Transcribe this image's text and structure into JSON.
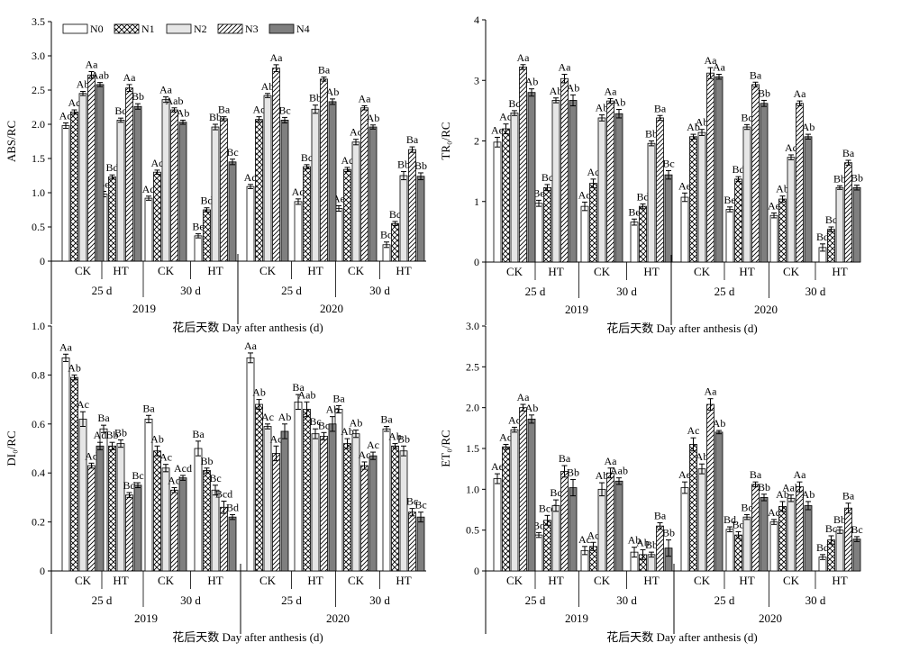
{
  "figure": {
    "xlabel": "花后天数 Day after anthesis (d)",
    "legend": [
      "N0",
      "N1",
      "N2",
      "N3",
      "N4"
    ],
    "groups": [
      "CK",
      "HT",
      "CK",
      "HT",
      "CK",
      "HT",
      "CK",
      "HT"
    ],
    "stages": [
      "25 d",
      "30 d",
      "25 d",
      "30 d"
    ],
    "years": [
      "2019",
      "2020"
    ]
  },
  "chart_data": [
    {
      "type": "bar",
      "ylabel": "ABS/RC",
      "ylim": [
        0,
        3.5
      ],
      "yticks": [
        "0",
        "0.5",
        "1.0",
        "1.5",
        "2.0",
        "2.5",
        "3.0",
        "3.5"
      ],
      "categories": [
        "2019 25 d CK",
        "2019 25 d HT",
        "2019 30 d CK",
        "2019 30 d HT",
        "2020 25 d CK",
        "2020 25 d HT",
        "2020 30 d CK",
        "2020 30 d HT"
      ],
      "series": [
        {
          "name": "N0",
          "values": [
            1.98,
            0.98,
            0.92,
            0.37,
            1.09,
            0.87,
            0.77,
            0.24
          ],
          "err": [
            0.04,
            0.04,
            0.03,
            0.03,
            0.03,
            0.04,
            0.04,
            0.04
          ],
          "labels": [
            "Ad",
            "Be",
            "Ad",
            "Be",
            "Ad",
            "Ad",
            "Ae",
            "Bd"
          ]
        },
        {
          "name": "N1",
          "values": [
            2.18,
            1.23,
            1.3,
            0.75,
            2.07,
            1.38,
            1.34,
            0.55
          ],
          "err": [
            0.03,
            0.03,
            0.03,
            0.03,
            0.04,
            0.03,
            0.03,
            0.03
          ],
          "labels": [
            "Ac",
            "Bd",
            "Ac",
            "Bd",
            "Ac",
            "Bc",
            "Ac",
            "Bc"
          ]
        },
        {
          "name": "N2",
          "values": [
            2.45,
            2.06,
            2.36,
            1.96,
            2.42,
            2.22,
            1.74,
            1.25
          ],
          "err": [
            0.03,
            0.03,
            0.04,
            0.04,
            0.03,
            0.06,
            0.04,
            0.06
          ],
          "labels": [
            "Ab",
            "Bc",
            "Aa",
            "Bb",
            "Ab",
            "Bb",
            "Ac",
            "Bb"
          ]
        },
        {
          "name": "N3",
          "values": [
            2.72,
            2.53,
            2.21,
            2.08,
            2.82,
            2.66,
            2.24,
            1.63
          ],
          "err": [
            0.05,
            0.05,
            0.03,
            0.03,
            0.05,
            0.03,
            0.03,
            0.04
          ],
          "labels": [
            "Aa",
            "Aa",
            "Aab",
            "Ba",
            "Aa",
            "Ba",
            "Aa",
            "Ba"
          ]
        },
        {
          "name": "N4",
          "values": [
            2.58,
            2.26,
            2.03,
            1.45,
            2.06,
            2.33,
            1.96,
            1.24
          ],
          "err": [
            0.03,
            0.04,
            0.03,
            0.04,
            0.04,
            0.04,
            0.03,
            0.05
          ],
          "labels": [
            "Aab",
            "Bb",
            "Ab",
            "Bc",
            "Bc",
            "Ab",
            "Ab",
            "Bb"
          ]
        }
      ]
    },
    {
      "type": "bar",
      "ylabel": "TR₀/RC",
      "ylim": [
        0,
        4
      ],
      "yticks": [
        "0",
        "1",
        "2",
        "3",
        "4"
      ],
      "categories": [
        "2019 25 d CK",
        "2019 25 d HT",
        "2019 30 d CK",
        "2019 30 d HT",
        "2020 25 d CK",
        "2020 25 d HT",
        "2020 30 d CK",
        "2020 30 d HT"
      ],
      "series": [
        {
          "name": "N0",
          "values": [
            1.98,
            0.97,
            0.92,
            0.66,
            1.07,
            0.87,
            0.77,
            0.24
          ],
          "err": [
            0.08,
            0.05,
            0.07,
            0.05,
            0.07,
            0.04,
            0.04,
            0.06
          ],
          "labels": [
            "Ae",
            "Be",
            "Ad",
            "Be",
            "Ae",
            "Be",
            "Ae",
            "Bd"
          ]
        },
        {
          "name": "N1",
          "values": [
            2.2,
            1.23,
            1.3,
            0.92,
            2.07,
            1.37,
            1.04,
            0.54
          ],
          "err": [
            0.08,
            0.05,
            0.07,
            0.04,
            0.04,
            0.04,
            0.05,
            0.04
          ],
          "labels": [
            "Ad",
            "Bc",
            "Ac",
            "Bd",
            "Ab",
            "Bd",
            "Ab",
            "Bc"
          ]
        },
        {
          "name": "N2",
          "values": [
            2.46,
            2.67,
            2.38,
            1.96,
            2.14,
            2.23,
            1.73,
            1.23
          ],
          "err": [
            0.04,
            0.04,
            0.05,
            0.04,
            0.05,
            0.04,
            0.04,
            0.03
          ],
          "labels": [
            "Bc",
            "Ab",
            "Ab",
            "Bb",
            "Ab",
            "Bc",
            "Ac",
            "Bb"
          ]
        },
        {
          "name": "N3",
          "values": [
            3.22,
            3.03,
            2.66,
            2.38,
            3.12,
            2.93,
            2.62,
            1.64
          ],
          "err": [
            0.04,
            0.07,
            0.04,
            0.04,
            0.09,
            0.04,
            0.04,
            0.04
          ],
          "labels": [
            "Aa",
            "Aa",
            "Aa",
            "Ba",
            "Aa",
            "Ba",
            "Aa",
            "Ba"
          ]
        },
        {
          "name": "N4",
          "values": [
            2.8,
            2.67,
            2.45,
            1.44,
            3.06,
            2.62,
            2.07,
            1.23
          ],
          "err": [
            0.06,
            0.09,
            0.07,
            0.07,
            0.04,
            0.05,
            0.04,
            0.04
          ],
          "labels": [
            "Ab",
            "Ab",
            "Ab",
            "Bc",
            "Aa",
            "Bb",
            "Ab",
            "Bb"
          ]
        }
      ]
    },
    {
      "type": "bar",
      "ylabel": "DI₀/RC",
      "ylim": [
        0,
        1.0
      ],
      "yticks": [
        "0",
        "0.2",
        "0.4",
        "0.6",
        "0.8",
        "1.0"
      ],
      "categories": [
        "2019 25 d CK",
        "2019 25 d HT",
        "2019 30 d CK",
        "2019 30 d HT",
        "2020 25 d CK",
        "2020 25 d HT",
        "2020 30 d CK",
        "2020 30 d HT"
      ],
      "series": [
        {
          "name": "N0",
          "values": [
            0.87,
            0.58,
            0.62,
            0.5,
            0.87,
            0.69,
            0.66,
            0.58
          ],
          "err": [
            0.015,
            0.015,
            0.015,
            0.03,
            0.02,
            0.03,
            0.015,
            0.01
          ],
          "labels": [
            "Aa",
            "Ba",
            "Ba",
            "Ba",
            "Aa",
            "Ba",
            "Ba",
            "Ba"
          ]
        },
        {
          "name": "N1",
          "values": [
            0.79,
            0.51,
            0.49,
            0.41,
            0.68,
            0.66,
            0.52,
            0.51
          ],
          "err": [
            0.01,
            0.015,
            0.02,
            0.01,
            0.02,
            0.03,
            0.02,
            0.01
          ],
          "labels": [
            "Ab",
            "Bb",
            "Ab",
            "Bb",
            "Ab",
            "Aab",
            "Ab",
            "Ab"
          ]
        },
        {
          "name": "N2",
          "values": [
            0.62,
            0.52,
            0.42,
            0.33,
            0.59,
            0.56,
            0.56,
            0.49
          ],
          "err": [
            0.03,
            0.015,
            0.015,
            0.02,
            0.01,
            0.02,
            0.015,
            0.02
          ],
          "labels": [
            "Ac",
            "Bb",
            "Ac",
            "Bc",
            "Ac",
            "Bc",
            "Ab",
            "Bb"
          ]
        },
        {
          "name": "N3",
          "values": [
            0.43,
            0.31,
            0.33,
            0.26,
            0.48,
            0.55,
            0.43,
            0.24
          ],
          "err": [
            0.01,
            0.01,
            0.01,
            0.025,
            0.03,
            0.015,
            0.015,
            0.015
          ],
          "labels": [
            "Ad",
            "Bd",
            "Ad",
            "Bcd",
            "Ac",
            "Bc",
            "Ac",
            "Bc"
          ]
        },
        {
          "name": "N4",
          "values": [
            0.51,
            0.35,
            0.38,
            0.22,
            0.57,
            0.6,
            0.47,
            0.22
          ],
          "err": [
            0.015,
            0.01,
            0.01,
            0.01,
            0.03,
            0.03,
            0.015,
            0.02
          ],
          "labels": [
            "Ad",
            "Bc",
            "Acd",
            "Bd",
            "Ab",
            "Ab",
            "Ac",
            "Bc"
          ]
        }
      ]
    },
    {
      "type": "bar",
      "ylabel": "ET₀/RC",
      "ylim": [
        0,
        3.0
      ],
      "yticks": [
        "0",
        "0.5",
        "1.0",
        "1.5",
        "2.0",
        "2.5",
        "3.0"
      ],
      "categories": [
        "2019 25 d CK",
        "2019 25 d HT",
        "2019 30 d CK",
        "2019 30 d HT",
        "2020 25 d CK",
        "2020 25 d HT",
        "2020 30 d CK",
        "2020 30 d HT"
      ],
      "series": [
        {
          "name": "N0",
          "values": [
            1.13,
            0.44,
            0.25,
            0.23,
            1.02,
            0.51,
            0.6,
            0.17
          ],
          "err": [
            0.06,
            0.03,
            0.05,
            0.06,
            0.07,
            0.03,
            0.03,
            0.03
          ],
          "labels": [
            "Ae",
            "Bd",
            "Ac",
            "Ab",
            "Ae",
            "Bd",
            "Ac",
            "Bd"
          ]
        },
        {
          "name": "N1",
          "values": [
            1.52,
            0.62,
            0.3,
            0.2,
            1.55,
            0.44,
            0.79,
            0.38
          ],
          "err": [
            0.03,
            0.06,
            0.05,
            0.06,
            0.08,
            0.04,
            0.06,
            0.05
          ],
          "labels": [
            "Ad",
            "Bcd",
            "Ac",
            "Ab",
            "Ac",
            "Bd",
            "Ab",
            "Bc"
          ]
        },
        {
          "name": "N2",
          "values": [
            1.73,
            0.8,
            1.0,
            0.2,
            1.25,
            0.66,
            0.89,
            0.5
          ],
          "err": [
            0.03,
            0.07,
            0.08,
            0.03,
            0.06,
            0.03,
            0.04,
            0.04
          ],
          "labels": [
            "Ac",
            "Bc",
            "Ab",
            "Bb",
            "Ab",
            "Bc",
            "Aab",
            "Bb"
          ]
        },
        {
          "name": "N3",
          "values": [
            2.0,
            1.22,
            1.2,
            0.55,
            2.04,
            1.06,
            1.03,
            0.77
          ],
          "err": [
            0.04,
            0.07,
            0.06,
            0.04,
            0.07,
            0.03,
            0.06,
            0.06
          ],
          "labels": [
            "Aa",
            "Ba",
            "Aa",
            "Ba",
            "Aa",
            "Ba",
            "Aa",
            "Ba"
          ]
        },
        {
          "name": "N4",
          "values": [
            1.86,
            1.02,
            1.1,
            0.28,
            1.7,
            0.9,
            0.8,
            0.39
          ],
          "err": [
            0.05,
            0.1,
            0.04,
            0.1,
            0.02,
            0.04,
            0.05,
            0.03
          ],
          "labels": [
            "Ab",
            "Bb",
            "Aab",
            "Bb",
            "Ab",
            "Bb",
            "Ab",
            "Bc"
          ]
        }
      ]
    }
  ]
}
